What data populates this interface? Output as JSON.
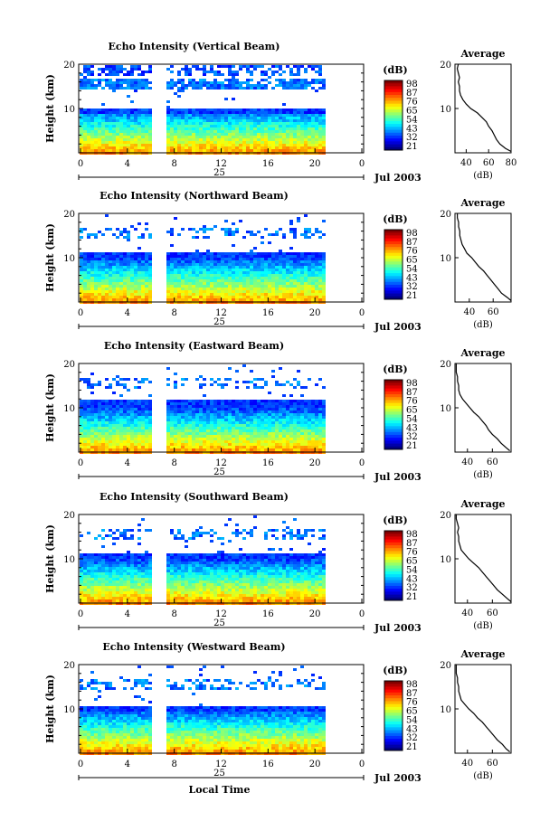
{
  "chart_data": [
    {
      "type": "heatmap",
      "title": "Echo Intensity (Vertical Beam)",
      "ylabel": "Height (km)",
      "yticks": [
        "20",
        "10"
      ],
      "xticks": [
        "0",
        "4",
        "8",
        "12",
        "16",
        "20",
        "0"
      ],
      "day_label": "25",
      "date_label": "Jul 2003",
      "colorbar": {
        "unit": "(dB)",
        "ticks": [
          "98",
          "87",
          "76",
          "65",
          "54",
          "43",
          "32",
          "21"
        ]
      },
      "avg": {
        "title": "Average",
        "xlabel": "(dB)",
        "xticks": [
          "40",
          "60",
          "80"
        ],
        "yticks": [
          "20",
          "10"
        ],
        "xlim": [
          30,
          80
        ],
        "profile": [
          [
            80,
            0.3
          ],
          [
            75,
            1
          ],
          [
            70,
            2
          ],
          [
            67,
            3
          ],
          [
            65,
            4
          ],
          [
            63,
            5
          ],
          [
            60,
            6
          ],
          [
            58,
            7
          ],
          [
            54,
            8
          ],
          [
            50,
            9
          ],
          [
            44,
            10
          ],
          [
            40,
            11
          ],
          [
            37,
            12
          ],
          [
            35,
            13
          ],
          [
            34,
            14
          ],
          [
            34,
            15
          ],
          [
            33,
            16
          ],
          [
            34,
            17
          ],
          [
            33,
            18
          ],
          [
            32,
            19
          ],
          [
            33,
            20
          ]
        ]
      }
    },
    {
      "type": "heatmap",
      "title": "Echo Intensity (Northward Beam)",
      "ylabel": "Height (km)",
      "yticks": [
        "20",
        "10"
      ],
      "xticks": [
        "0",
        "4",
        "8",
        "12",
        "16",
        "20",
        "0"
      ],
      "day_label": "25",
      "date_label": "Jul 2003",
      "colorbar": {
        "unit": "(dB)",
        "ticks": [
          "98",
          "87",
          "76",
          "65",
          "54",
          "43",
          "32",
          "21"
        ]
      },
      "avg": {
        "title": "Average",
        "xlabel": "(dB)",
        "xticks": [
          "40",
          "60"
        ],
        "yticks": [
          "20",
          "10"
        ],
        "xlim": [
          28,
          75
        ],
        "profile": [
          [
            75,
            0.3
          ],
          [
            72,
            1
          ],
          [
            67,
            2
          ],
          [
            64,
            3
          ],
          [
            61,
            4
          ],
          [
            58,
            5
          ],
          [
            55,
            6
          ],
          [
            52,
            7
          ],
          [
            48,
            8
          ],
          [
            45,
            9
          ],
          [
            42,
            10
          ],
          [
            38,
            11
          ],
          [
            36,
            12
          ],
          [
            34,
            13
          ],
          [
            33,
            14
          ],
          [
            32,
            15
          ],
          [
            32,
            16
          ],
          [
            31,
            17
          ],
          [
            31,
            18
          ],
          [
            30,
            19
          ],
          [
            30,
            20
          ]
        ]
      }
    },
    {
      "type": "heatmap",
      "title": "Echo Intensity (Eastward Beam)",
      "ylabel": "Height (km)",
      "yticks": [
        "20",
        "10"
      ],
      "xticks": [
        "0",
        "4",
        "8",
        "12",
        "16",
        "20",
        "0"
      ],
      "day_label": "25",
      "date_label": "Jul 2003",
      "colorbar": {
        "unit": "(dB)",
        "ticks": [
          "98",
          "87",
          "76",
          "65",
          "54",
          "43",
          "32",
          "21"
        ]
      },
      "avg": {
        "title": "Average",
        "xlabel": "(dB)",
        "xticks": [
          "40",
          "60"
        ],
        "yticks": [
          "20",
          "10"
        ],
        "xlim": [
          30,
          75
        ],
        "profile": [
          [
            74,
            0.3
          ],
          [
            71,
            1
          ],
          [
            67,
            2
          ],
          [
            64,
            3
          ],
          [
            60,
            4
          ],
          [
            57,
            5
          ],
          [
            55,
            6
          ],
          [
            52,
            7
          ],
          [
            49,
            8
          ],
          [
            45,
            9
          ],
          [
            42,
            10
          ],
          [
            39,
            11
          ],
          [
            36,
            12
          ],
          [
            34,
            13
          ],
          [
            33,
            14
          ],
          [
            33,
            15
          ],
          [
            32,
            16
          ],
          [
            32,
            17
          ],
          [
            31,
            18
          ],
          [
            31,
            19
          ],
          [
            31,
            20
          ]
        ]
      }
    },
    {
      "type": "heatmap",
      "title": "Echo Intensity (Southward Beam)",
      "ylabel": "Height (km)",
      "yticks": [
        "20",
        "10"
      ],
      "xticks": [
        "0",
        "4",
        "8",
        "12",
        "16",
        "20",
        "0"
      ],
      "day_label": "25",
      "date_label": "Jul 2003",
      "colorbar": {
        "unit": "(dB)",
        "ticks": [
          "98",
          "87",
          "76",
          "65",
          "54",
          "43",
          "32",
          "21"
        ]
      },
      "avg": {
        "title": "Average",
        "xlabel": "(dB)",
        "xticks": [
          "40",
          "60"
        ],
        "yticks": [
          "20",
          "10"
        ],
        "xlim": [
          30,
          75
        ],
        "profile": [
          [
            75,
            0.3
          ],
          [
            72,
            1
          ],
          [
            68,
            2
          ],
          [
            64,
            3
          ],
          [
            61,
            4
          ],
          [
            58,
            5
          ],
          [
            55,
            6
          ],
          [
            52,
            7
          ],
          [
            49,
            8
          ],
          [
            45,
            9
          ],
          [
            41,
            10
          ],
          [
            38,
            11
          ],
          [
            35,
            12
          ],
          [
            34,
            13
          ],
          [
            33,
            14
          ],
          [
            33,
            15
          ],
          [
            32,
            16
          ],
          [
            33,
            17
          ],
          [
            32,
            18
          ],
          [
            31,
            19
          ],
          [
            31,
            20
          ]
        ]
      }
    },
    {
      "type": "heatmap",
      "title": "Echo Intensity (Westward Beam)",
      "ylabel": "Height (km)",
      "yticks": [
        "20",
        "10"
      ],
      "xticks": [
        "0",
        "4",
        "8",
        "12",
        "16",
        "20",
        "0"
      ],
      "day_label": "25",
      "date_label": "Jul 2003",
      "xlabel": "Local Time",
      "colorbar": {
        "unit": "(dB)",
        "ticks": [
          "98",
          "87",
          "76",
          "65",
          "54",
          "43",
          "32",
          "21"
        ]
      },
      "avg": {
        "title": "Average",
        "xlabel": "(dB)",
        "xticks": [
          "40",
          "60"
        ],
        "yticks": [
          "20",
          "10"
        ],
        "xlim": [
          30,
          75
        ],
        "profile": [
          [
            74,
            0.3
          ],
          [
            71,
            1
          ],
          [
            68,
            2
          ],
          [
            64,
            3
          ],
          [
            61,
            4
          ],
          [
            58,
            5
          ],
          [
            55,
            6
          ],
          [
            52,
            7
          ],
          [
            48,
            8
          ],
          [
            45,
            9
          ],
          [
            41,
            10
          ],
          [
            38,
            11
          ],
          [
            35,
            12
          ],
          [
            34,
            13
          ],
          [
            33,
            14
          ],
          [
            33,
            15
          ],
          [
            32,
            16
          ],
          [
            32,
            17
          ],
          [
            31,
            18
          ],
          [
            31,
            19
          ],
          [
            31,
            20
          ]
        ]
      }
    }
  ]
}
